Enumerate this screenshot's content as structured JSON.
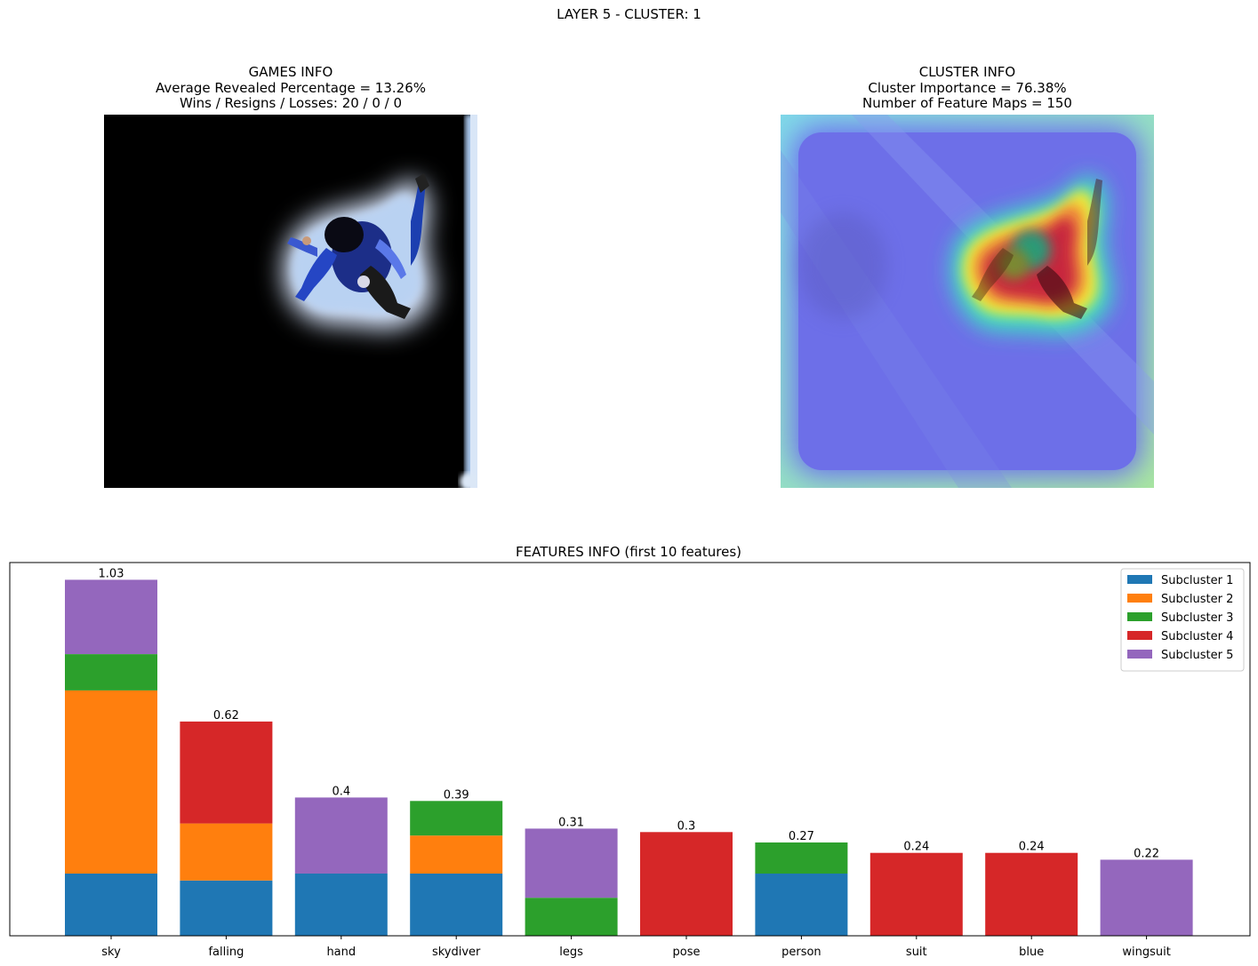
{
  "suptitle": "LAYER 5 - CLUSTER: 1",
  "games_info": {
    "title": "GAMES INFO",
    "line1": "Average Revealed Percentage = 13.26%",
    "line2": "Wins / Resigns / Losses: 20 / 0 / 0"
  },
  "cluster_info": {
    "title": "CLUSTER INFO",
    "line1": "Cluster Importance = 76.38%",
    "line2": "Number of Feature Maps = 150"
  },
  "colors": {
    "subcluster_1": "#1f77b4",
    "subcluster_2": "#ff7f0e",
    "subcluster_3": "#2ca02c",
    "subcluster_4": "#d62728",
    "subcluster_5": "#9467bd"
  },
  "chart_data": {
    "type": "bar",
    "stacked": true,
    "title": "FEATURES INFO (first 10 features)",
    "xlabel": "",
    "ylabel": "",
    "ylim": [
      0,
      1.08
    ],
    "y_axis_visible": false,
    "legend_position": "top-right",
    "categories": [
      "sky",
      "falling",
      "hand",
      "skydiver",
      "legs",
      "pose",
      "person",
      "suit",
      "blue",
      "wingsuit"
    ],
    "series": [
      {
        "name": "Subcluster 1",
        "color": "#1f77b4",
        "values": [
          0.18,
          0.16,
          0.18,
          0.18,
          0.0,
          0.0,
          0.18,
          0.0,
          0.0,
          0.0
        ]
      },
      {
        "name": "Subcluster 2",
        "color": "#ff7f0e",
        "values": [
          0.53,
          0.165,
          0.0,
          0.11,
          0.0,
          0.0,
          0.0,
          0.0,
          0.0,
          0.0
        ]
      },
      {
        "name": "Subcluster 3",
        "color": "#2ca02c",
        "values": [
          0.105,
          0.0,
          0.0,
          0.1,
          0.11,
          0.0,
          0.09,
          0.0,
          0.0,
          0.0
        ]
      },
      {
        "name": "Subcluster 4",
        "color": "#d62728",
        "values": [
          0.0,
          0.295,
          0.0,
          0.0,
          0.0,
          0.3,
          0.0,
          0.24,
          0.24,
          0.0
        ]
      },
      {
        "name": "Subcluster 5",
        "color": "#9467bd",
        "values": [
          0.215,
          0.0,
          0.22,
          0.0,
          0.2,
          0.0,
          0.0,
          0.0,
          0.0,
          0.22
        ]
      }
    ],
    "totals": [
      "1.03",
      "0.62",
      "0.4",
      "0.39",
      "0.31",
      "0.3",
      "0.27",
      "0.24",
      "0.24",
      "0.22"
    ]
  }
}
